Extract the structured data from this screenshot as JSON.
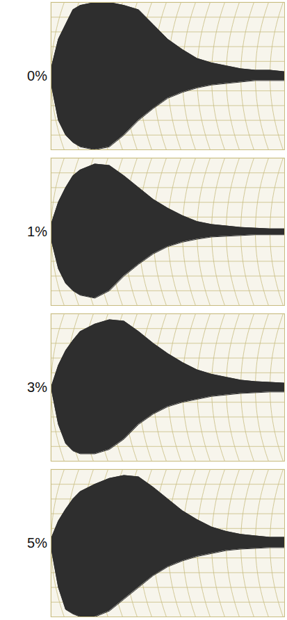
{
  "chart_data": [
    {
      "type": "area",
      "title": "0%",
      "color": "#2e2e2e",
      "grid": true,
      "tick_labels": false,
      "x": [
        0,
        0.5,
        1,
        1.5,
        2,
        3,
        4,
        5,
        6,
        7,
        8,
        9,
        10,
        11,
        12,
        13,
        14,
        15,
        16
      ],
      "values": [
        0.5,
        2.5,
        3.5,
        4.5,
        4.8,
        5,
        5,
        4.8,
        4.5,
        3.5,
        2.5,
        1.8,
        1.2,
        0.9,
        0.7,
        0.5,
        0.4,
        0.4,
        0.3
      ],
      "lower": [
        -0.5,
        -3,
        -4,
        -4.5,
        -4.8,
        -5,
        -4.8,
        -4,
        -3,
        -2.2,
        -1.5,
        -1.1,
        -0.8,
        -0.6,
        -0.5,
        -0.4,
        -0.3,
        -0.3,
        -0.3
      ],
      "xlim": [
        0,
        16
      ],
      "ylim": [
        -5,
        5
      ],
      "xticks": [
        0,
        1,
        2,
        3,
        4,
        5,
        6,
        7,
        8,
        9,
        10,
        11,
        12,
        13,
        14,
        15,
        16
      ],
      "yticks": [
        -5,
        -4,
        -3,
        -2,
        -1,
        0,
        1,
        2,
        3,
        4,
        5
      ]
    },
    {
      "type": "area",
      "title": "1%",
      "color": "#2e2e2e",
      "grid": true,
      "tick_labels": false,
      "x": [
        0,
        0.5,
        1,
        1.5,
        2,
        3,
        4,
        5,
        6,
        7,
        8,
        9,
        10,
        11,
        12,
        13,
        14,
        15,
        16
      ],
      "values": [
        0.5,
        2,
        3,
        3.8,
        4.2,
        4.6,
        4.5,
        3.8,
        3,
        2.2,
        1.6,
        1.1,
        0.7,
        0.5,
        0.4,
        0.3,
        0.25,
        0.2,
        0.2
      ],
      "lower": [
        -0.5,
        -2.5,
        -3.5,
        -4,
        -4.3,
        -4.5,
        -4,
        -3,
        -2.2,
        -1.5,
        -1,
        -0.7,
        -0.5,
        -0.35,
        -0.3,
        -0.25,
        -0.2,
        -0.2,
        -0.2
      ],
      "xlim": [
        0,
        16
      ],
      "ylim": [
        -5,
        5
      ],
      "xticks": [
        0,
        1,
        2,
        3,
        4,
        5,
        6,
        7,
        8,
        9,
        10,
        11,
        12,
        13,
        14,
        15,
        16
      ],
      "yticks": [
        -5,
        -4,
        -3,
        -2,
        -1,
        0,
        1,
        2,
        3,
        4,
        5
      ]
    },
    {
      "type": "area",
      "title": "3%",
      "color": "#2e2e2e",
      "grid": true,
      "tick_labels": false,
      "x": [
        0,
        0.5,
        1,
        1.5,
        2,
        3,
        4,
        5,
        6,
        7,
        8,
        9,
        10,
        11,
        12,
        13,
        14,
        15,
        16
      ],
      "values": [
        0,
        1.5,
        2.5,
        3.2,
        3.8,
        4.3,
        4.6,
        4.5,
        3.8,
        3,
        2.3,
        1.7,
        1.2,
        0.9,
        0.7,
        0.5,
        0.4,
        0.35,
        0.3
      ],
      "lower": [
        0,
        -2.5,
        -3.8,
        -4.3,
        -4.5,
        -4.5,
        -4.2,
        -3.5,
        -2.5,
        -1.8,
        -1.3,
        -1,
        -0.8,
        -0.6,
        -0.5,
        -0.4,
        -0.35,
        -0.3,
        -0.3
      ],
      "xlim": [
        0,
        16
      ],
      "ylim": [
        -5,
        5
      ],
      "xticks": [
        0,
        1,
        2,
        3,
        4,
        5,
        6,
        7,
        8,
        9,
        10,
        11,
        12,
        13,
        14,
        15,
        16
      ],
      "yticks": [
        -5,
        -4,
        -3,
        -2,
        -1,
        0,
        1,
        2,
        3,
        4,
        5
      ]
    },
    {
      "type": "area",
      "title": "5%",
      "color": "#2e2e2e",
      "grid": true,
      "tick_labels": false,
      "x": [
        0,
        0.5,
        1,
        1.5,
        2,
        3,
        4,
        5,
        6,
        7,
        8,
        9,
        10,
        11,
        12,
        13,
        14,
        15,
        16
      ],
      "values": [
        0.3,
        1.5,
        2.3,
        3,
        3.5,
        4,
        4.4,
        4.6,
        4.5,
        3.8,
        3,
        2.2,
        1.6,
        1.1,
        0.8,
        0.6,
        0.5,
        0.4,
        0.4
      ],
      "lower": [
        -0.3,
        -3,
        -4.5,
        -4.8,
        -5,
        -5,
        -4.6,
        -3.8,
        -3,
        -2.2,
        -1.6,
        -1.2,
        -0.9,
        -0.7,
        -0.5,
        -0.4,
        -0.35,
        -0.3,
        -0.3
      ],
      "xlim": [
        0,
        16
      ],
      "ylim": [
        -5,
        5
      ],
      "xticks": [
        0,
        1,
        2,
        3,
        4,
        5,
        6,
        7,
        8,
        9,
        10,
        11,
        12,
        13,
        14,
        15,
        16
      ],
      "yticks": [
        -5,
        -4,
        -3,
        -2,
        -1,
        0,
        1,
        2,
        3,
        4,
        5
      ]
    }
  ]
}
